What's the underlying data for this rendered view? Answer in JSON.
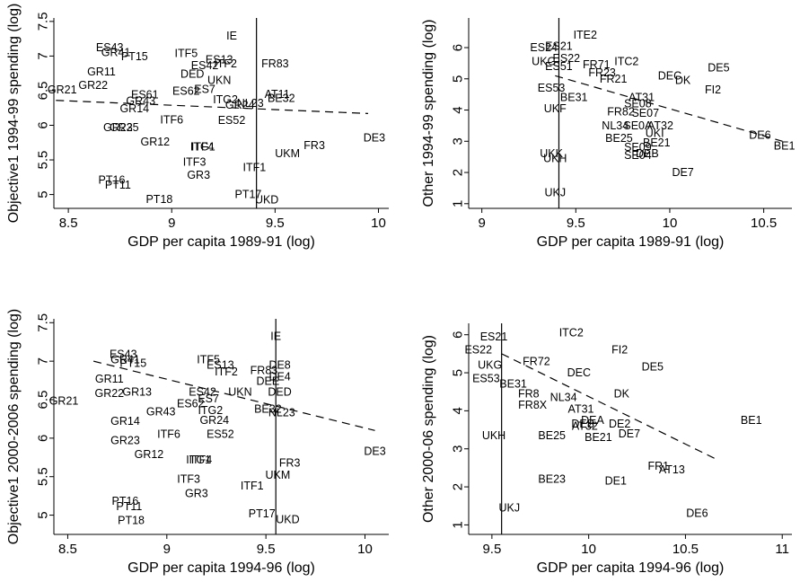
{
  "chart_data": [
    {
      "type": "scatter",
      "xlabel": "GDP per capita 1989-91 (log)",
      "ylabel": "Objective1 1994-99  spending (log)",
      "xlim": [
        8.43,
        10.05
      ],
      "ylim": [
        4.8,
        7.55
      ],
      "xticks": [
        8.5,
        9,
        9.5,
        10
      ],
      "yticks": [
        5,
        5.5,
        6,
        6.5,
        7,
        7.5
      ],
      "xtick_labels": [
        "8.5",
        "9",
        "9.5",
        "10"
      ],
      "ytick_labels": [
        "5",
        "5.5",
        "6",
        "6.5",
        "7",
        "7.5"
      ],
      "vline_x": 9.41,
      "fit_line": [
        [
          8.44,
          6.36
        ],
        [
          9.95,
          6.17
        ]
      ],
      "points": [
        {
          "label": "IE",
          "x": 9.29,
          "y": 7.29
        },
        {
          "label": "ES43",
          "x": 8.7,
          "y": 7.12
        },
        {
          "label": "GR41",
          "x": 8.73,
          "y": 7.05
        },
        {
          "label": "ITF5",
          "x": 9.07,
          "y": 7.04
        },
        {
          "label": "PT15",
          "x": 8.82,
          "y": 6.99
        },
        {
          "label": "ES13",
          "x": 9.23,
          "y": 6.95
        },
        {
          "label": "ITF2",
          "x": 9.26,
          "y": 6.89
        },
        {
          "label": "FR83",
          "x": 9.5,
          "y": 6.89
        },
        {
          "label": "ES42",
          "x": 9.16,
          "y": 6.86
        },
        {
          "label": "GR11",
          "x": 8.66,
          "y": 6.77
        },
        {
          "label": "DED",
          "x": 9.1,
          "y": 6.74
        },
        {
          "label": "GR22",
          "x": 8.62,
          "y": 6.58
        },
        {
          "label": "ES61",
          "x": 8.87,
          "y": 6.44
        },
        {
          "label": "ES62",
          "x": 9.07,
          "y": 6.49
        },
        {
          "label": "UKN",
          "x": 9.23,
          "y": 6.65
        },
        {
          "label": "ES7",
          "x": 9.16,
          "y": 6.52
        },
        {
          "label": "GR21",
          "x": 8.47,
          "y": 6.51
        },
        {
          "label": "AT11",
          "x": 9.51,
          "y": 6.45
        },
        {
          "label": "BE32",
          "x": 9.53,
          "y": 6.39
        },
        {
          "label": "GR43",
          "x": 8.85,
          "y": 6.35
        },
        {
          "label": "ITG2",
          "x": 9.26,
          "y": 6.37
        },
        {
          "label": "NL23",
          "x": 9.38,
          "y": 6.32
        },
        {
          "label": "GR24",
          "x": 9.33,
          "y": 6.29
        },
        {
          "label": "GR14",
          "x": 8.82,
          "y": 6.24
        },
        {
          "label": "ITF6",
          "x": 9.0,
          "y": 6.08
        },
        {
          "label": "ES52",
          "x": 9.29,
          "y": 6.07
        },
        {
          "label": "GR23",
          "x": 8.74,
          "y": 5.97
        },
        {
          "label": "GR25",
          "x": 8.77,
          "y": 5.97
        },
        {
          "label": "GR12",
          "x": 8.92,
          "y": 5.76
        },
        {
          "label": "ITG1",
          "x": 9.15,
          "y": 5.69
        },
        {
          "label": "ITF4",
          "x": 9.15,
          "y": 5.69
        },
        {
          "label": "ITF3",
          "x": 9.11,
          "y": 5.47
        },
        {
          "label": "UKM",
          "x": 9.56,
          "y": 5.59
        },
        {
          "label": "FR3",
          "x": 9.69,
          "y": 5.71
        },
        {
          "label": "DE3",
          "x": 9.98,
          "y": 5.82
        },
        {
          "label": "GR3",
          "x": 9.13,
          "y": 5.28
        },
        {
          "label": "ITF1",
          "x": 9.4,
          "y": 5.39
        },
        {
          "label": "PT16",
          "x": 8.71,
          "y": 5.21
        },
        {
          "label": "PT11",
          "x": 8.74,
          "y": 5.14
        },
        {
          "label": "PT17",
          "x": 9.37,
          "y": 5.0
        },
        {
          "label": "PT18",
          "x": 8.94,
          "y": 4.93
        },
        {
          "label": "UKD",
          "x": 9.46,
          "y": 4.92
        }
      ]
    },
    {
      "type": "scatter",
      "xlabel": "GDP per capita 1989-91 (log)",
      "ylabel": "Other 1994-99  spending (log)",
      "xlim": [
        8.93,
        10.65
      ],
      "ylim": [
        0.85,
        6.95
      ],
      "xticks": [
        9,
        9.5,
        10,
        10.5
      ],
      "yticks": [
        1,
        2,
        3,
        4,
        5,
        6
      ],
      "xtick_labels": [
        "9",
        "9.5",
        "10",
        "10.5"
      ],
      "ytick_labels": [
        "1",
        "2",
        "3",
        "4",
        "5",
        "6"
      ],
      "vline_x": 9.41,
      "fit_line": [
        [
          9.39,
          5.1
        ],
        [
          10.6,
          3.0
        ]
      ],
      "points": [
        {
          "label": "ITE2",
          "x": 9.55,
          "y": 6.4
        },
        {
          "label": "ES24",
          "x": 9.33,
          "y": 6.0
        },
        {
          "label": "ES21",
          "x": 9.41,
          "y": 6.05
        },
        {
          "label": "ES22",
          "x": 9.45,
          "y": 5.65
        },
        {
          "label": "UKG",
          "x": 9.33,
          "y": 5.55
        },
        {
          "label": "ES51",
          "x": 9.41,
          "y": 5.4
        },
        {
          "label": "FR71",
          "x": 9.61,
          "y": 5.45
        },
        {
          "label": "ITC2",
          "x": 9.77,
          "y": 5.55
        },
        {
          "label": "FR23",
          "x": 9.64,
          "y": 5.2
        },
        {
          "label": "FR21",
          "x": 9.7,
          "y": 5.0
        },
        {
          "label": "DEC",
          "x": 10.0,
          "y": 5.1
        },
        {
          "label": "DE5",
          "x": 10.26,
          "y": 5.35
        },
        {
          "label": "DK",
          "x": 10.07,
          "y": 4.95
        },
        {
          "label": "FI2",
          "x": 10.23,
          "y": 4.65
        },
        {
          "label": "ES53",
          "x": 9.37,
          "y": 4.7
        },
        {
          "label": "BE31",
          "x": 9.49,
          "y": 4.4
        },
        {
          "label": "AT31",
          "x": 9.85,
          "y": 4.4
        },
        {
          "label": "SE08",
          "x": 9.83,
          "y": 4.2
        },
        {
          "label": "UKF",
          "x": 9.39,
          "y": 4.05
        },
        {
          "label": "FR82",
          "x": 9.74,
          "y": 3.95
        },
        {
          "label": "SE07",
          "x": 9.87,
          "y": 3.9
        },
        {
          "label": "NL34",
          "x": 9.71,
          "y": 3.5
        },
        {
          "label": "SE0A",
          "x": 9.83,
          "y": 3.5
        },
        {
          "label": "AT32",
          "x": 9.95,
          "y": 3.5
        },
        {
          "label": "UKI",
          "x": 9.92,
          "y": 3.25
        },
        {
          "label": "BE25",
          "x": 9.73,
          "y": 3.1
        },
        {
          "label": "BE21",
          "x": 9.93,
          "y": 2.95
        },
        {
          "label": "SE09",
          "x": 9.83,
          "y": 2.8
        },
        {
          "label": "SE04",
          "x": 9.83,
          "y": 2.55
        },
        {
          "label": "DEB",
          "x": 9.88,
          "y": 2.6
        },
        {
          "label": "DE6",
          "x": 10.48,
          "y": 3.2
        },
        {
          "label": "BE1",
          "x": 10.61,
          "y": 2.85
        },
        {
          "label": "UKK",
          "x": 9.37,
          "y": 2.6
        },
        {
          "label": "UKH",
          "x": 9.39,
          "y": 2.45
        },
        {
          "label": "DE7",
          "x": 10.07,
          "y": 2.0
        },
        {
          "label": "UKJ",
          "x": 9.39,
          "y": 1.35
        }
      ]
    },
    {
      "type": "scatter",
      "xlabel": "GDP per capita 1994-96 (log)",
      "ylabel": "Objective1 2000-2006  spending (log)",
      "xlim": [
        8.43,
        10.12
      ],
      "ylim": [
        4.75,
        7.55
      ],
      "xticks": [
        8.5,
        9,
        9.5,
        10
      ],
      "yticks": [
        5,
        5.5,
        6,
        6.5,
        7,
        7.5
      ],
      "xtick_labels": [
        "8.5",
        "9",
        "9.5",
        "10"
      ],
      "ytick_labels": [
        "5",
        "5.5",
        "6",
        "6.5",
        "7",
        "7.5"
      ],
      "vline_x": 9.55,
      "fit_line": [
        [
          8.63,
          7.0
        ],
        [
          10.05,
          6.1
        ]
      ],
      "points": [
        {
          "label": "IE",
          "x": 9.55,
          "y": 7.32
        },
        {
          "label": "ES43",
          "x": 8.78,
          "y": 7.09
        },
        {
          "label": "GR41",
          "x": 8.79,
          "y": 7.02
        },
        {
          "label": "ITF5",
          "x": 9.21,
          "y": 7.02
        },
        {
          "label": "PT15",
          "x": 8.83,
          "y": 6.97
        },
        {
          "label": "ES13",
          "x": 9.27,
          "y": 6.95
        },
        {
          "label": "DE8",
          "x": 9.57,
          "y": 6.95
        },
        {
          "label": "FR83",
          "x": 9.49,
          "y": 6.88
        },
        {
          "label": "ITF2",
          "x": 9.3,
          "y": 6.86
        },
        {
          "label": "DE4",
          "x": 9.57,
          "y": 6.8
        },
        {
          "label": "GR11",
          "x": 8.71,
          "y": 6.77
        },
        {
          "label": "GR22",
          "x": 8.71,
          "y": 6.58
        },
        {
          "label": "GR13",
          "x": 8.85,
          "y": 6.6
        },
        {
          "label": "ES42",
          "x": 9.18,
          "y": 6.6
        },
        {
          "label": "UKN",
          "x": 9.37,
          "y": 6.6
        },
        {
          "label": "DED",
          "x": 9.57,
          "y": 6.6
        },
        {
          "label": "DEE",
          "x": 9.51,
          "y": 6.74
        },
        {
          "label": "ES7",
          "x": 9.21,
          "y": 6.51
        },
        {
          "label": "GR21",
          "x": 8.48,
          "y": 6.48
        },
        {
          "label": "ES62",
          "x": 9.12,
          "y": 6.45
        },
        {
          "label": "GR43",
          "x": 8.97,
          "y": 6.34
        },
        {
          "label": "ITG2",
          "x": 9.22,
          "y": 6.36
        },
        {
          "label": "BE32",
          "x": 9.51,
          "y": 6.38
        },
        {
          "label": "NL23",
          "x": 9.58,
          "y": 6.33
        },
        {
          "label": "GR14",
          "x": 8.79,
          "y": 6.22
        },
        {
          "label": "GR24",
          "x": 9.24,
          "y": 6.23
        },
        {
          "label": "ITF6",
          "x": 9.01,
          "y": 6.05
        },
        {
          "label": "ES52",
          "x": 9.27,
          "y": 6.05
        },
        {
          "label": "GR23",
          "x": 8.79,
          "y": 5.97
        },
        {
          "label": "GR12",
          "x": 8.91,
          "y": 5.79
        },
        {
          "label": "ITG1",
          "x": 9.16,
          "y": 5.72
        },
        {
          "label": "ITF4",
          "x": 9.17,
          "y": 5.72
        },
        {
          "label": "FR3",
          "x": 9.62,
          "y": 5.68
        },
        {
          "label": "UKM",
          "x": 9.56,
          "y": 5.52
        },
        {
          "label": "DE3",
          "x": 10.05,
          "y": 5.83
        },
        {
          "label": "ITF3",
          "x": 9.11,
          "y": 5.47
        },
        {
          "label": "ITF1",
          "x": 9.43,
          "y": 5.38
        },
        {
          "label": "GR3",
          "x": 9.15,
          "y": 5.28
        },
        {
          "label": "PT16",
          "x": 8.79,
          "y": 5.18
        },
        {
          "label": "PT11",
          "x": 8.81,
          "y": 5.11
        },
        {
          "label": "PT17",
          "x": 9.48,
          "y": 5.02
        },
        {
          "label": "PT18",
          "x": 8.82,
          "y": 4.93
        },
        {
          "label": "UKD",
          "x": 9.61,
          "y": 4.94
        }
      ]
    },
    {
      "type": "scatter",
      "xlabel": "GDP per capita 1994-96 (log)",
      "ylabel": "Other 2000-06 spending (log)",
      "xlim": [
        9.38,
        11.05
      ],
      "ylim": [
        0.75,
        6.3
      ],
      "xticks": [
        9.5,
        10,
        10.5,
        11
      ],
      "yticks": [
        1,
        2,
        3,
        4,
        5,
        6
      ],
      "xtick_labels": [
        "9.5",
        "10",
        "10.5",
        "11"
      ],
      "ytick_labels": [
        "1",
        "2",
        "3",
        "4",
        "5",
        "6"
      ],
      "vline_x": 9.55,
      "fit_line": [
        [
          9.55,
          5.5
        ],
        [
          10.67,
          2.7
        ]
      ],
      "points": [
        {
          "label": "ES21",
          "x": 9.51,
          "y": 5.95
        },
        {
          "label": "ITC2",
          "x": 9.91,
          "y": 6.05
        },
        {
          "label": "ES22",
          "x": 9.43,
          "y": 5.6
        },
        {
          "label": "UKG",
          "x": 9.49,
          "y": 5.2
        },
        {
          "label": "ES53",
          "x": 9.47,
          "y": 4.85
        },
        {
          "label": "FR72",
          "x": 9.73,
          "y": 5.3
        },
        {
          "label": "DEC",
          "x": 9.95,
          "y": 5.0
        },
        {
          "label": "FI2",
          "x": 10.16,
          "y": 5.6
        },
        {
          "label": "DE5",
          "x": 10.33,
          "y": 5.15
        },
        {
          "label": "DK",
          "x": 10.17,
          "y": 4.45
        },
        {
          "label": "BE31",
          "x": 9.61,
          "y": 4.7
        },
        {
          "label": "FR8X",
          "x": 9.71,
          "y": 4.15
        },
        {
          "label": "FR8",
          "x": 9.69,
          "y": 4.45
        },
        {
          "label": "NL34",
          "x": 9.87,
          "y": 4.35
        },
        {
          "label": "AT31",
          "x": 9.96,
          "y": 4.05
        },
        {
          "label": "AT32",
          "x": 9.98,
          "y": 3.6
        },
        {
          "label": "DEB",
          "x": 9.97,
          "y": 3.65
        },
        {
          "label": "DEA",
          "x": 10.02,
          "y": 3.75
        },
        {
          "label": "DE2",
          "x": 10.16,
          "y": 3.65
        },
        {
          "label": "DE7",
          "x": 10.21,
          "y": 3.4
        },
        {
          "label": "UKH",
          "x": 9.51,
          "y": 3.35
        },
        {
          "label": "BE25",
          "x": 9.81,
          "y": 3.35
        },
        {
          "label": "BE21",
          "x": 10.05,
          "y": 3.3
        },
        {
          "label": "BE1",
          "x": 10.84,
          "y": 3.75
        },
        {
          "label": "FR1",
          "x": 10.36,
          "y": 2.55
        },
        {
          "label": "AT13",
          "x": 10.43,
          "y": 2.45
        },
        {
          "label": "BE23",
          "x": 9.81,
          "y": 2.2
        },
        {
          "label": "DE1",
          "x": 10.14,
          "y": 2.15
        },
        {
          "label": "UKJ",
          "x": 9.59,
          "y": 1.45
        },
        {
          "label": "DE6",
          "x": 10.56,
          "y": 1.3
        }
      ]
    }
  ]
}
